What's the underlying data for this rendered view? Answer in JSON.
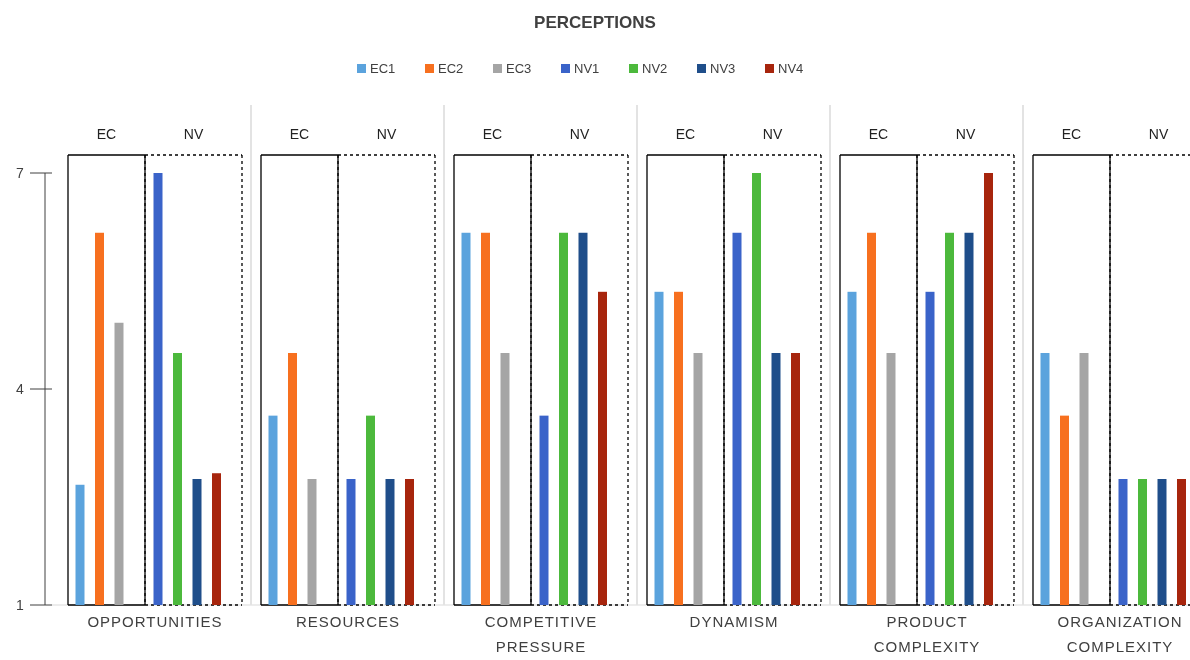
{
  "chart_data": {
    "type": "bar",
    "title": "PERCEPTIONS",
    "categories": [
      "OPPORTUNITIES",
      "RESOURCES",
      "COMPETITIVE PRESSURE",
      "DYNAMISM",
      "PRODUCT COMPLEXITY",
      "ORGANIZATION COMPLEXITY"
    ],
    "series": [
      {
        "name": "EC1",
        "color": "#5ba3dd",
        "values": [
          2.67,
          3.63,
          6.17,
          5.35,
          5.35,
          4.5
        ]
      },
      {
        "name": "EC2",
        "color": "#f7701f",
        "values": [
          6.17,
          4.5,
          6.17,
          5.35,
          6.17,
          3.63
        ]
      },
      {
        "name": "EC3",
        "color": "#a5a5a5",
        "values": [
          4.92,
          2.75,
          4.5,
          4.5,
          4.5,
          4.5
        ]
      },
      {
        "name": "NV1",
        "color": "#3a63c9",
        "values": [
          7,
          2.75,
          3.63,
          6.17,
          5.35,
          2.75
        ]
      },
      {
        "name": "NV2",
        "color": "#4cb93c",
        "values": [
          4.5,
          3.63,
          6.17,
          7,
          6.17,
          2.75
        ]
      },
      {
        "name": "NV3",
        "color": "#1f4e8a",
        "values": [
          2.75,
          2.75,
          6.17,
          4.5,
          6.17,
          2.75
        ]
      },
      {
        "name": "NV4",
        "color": "#a7250d",
        "values": [
          2.83,
          2.75,
          5.35,
          4.5,
          7,
          2.75
        ]
      }
    ],
    "annotations": [
      "EC",
      "NV",
      "EC",
      "NV",
      "EC",
      "NV",
      "EC",
      "NV",
      "EC",
      "NV",
      "EC",
      "NV"
    ],
    "ylim": [
      1,
      7
    ],
    "yticks": [
      1,
      4,
      7
    ],
    "grid": false,
    "legend": "top"
  }
}
